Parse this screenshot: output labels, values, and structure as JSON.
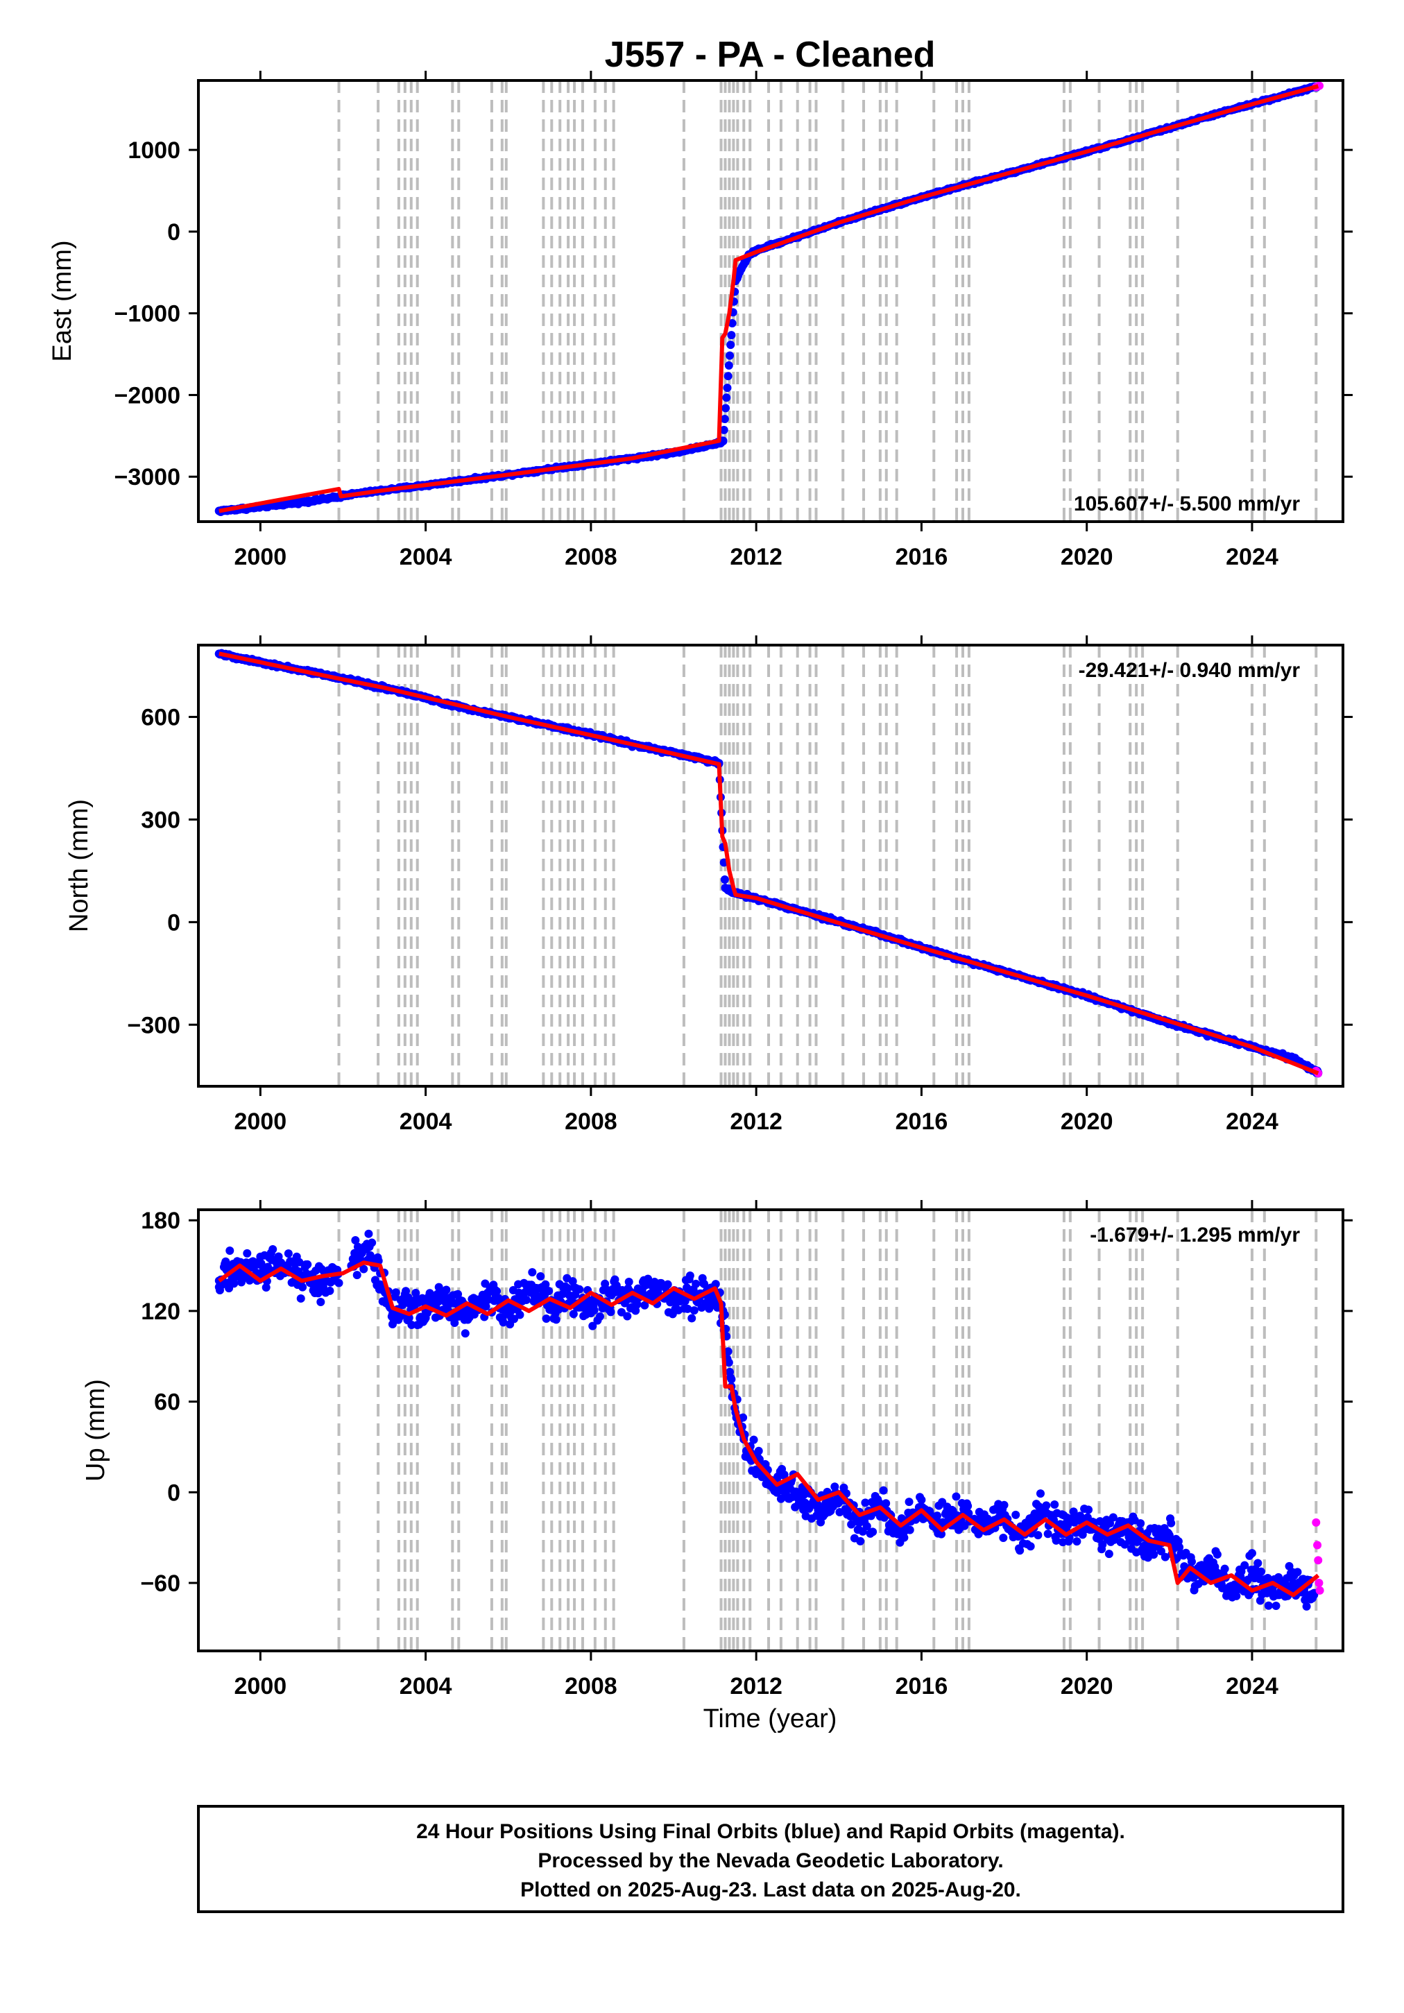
{
  "title": "J557  - PA - Cleaned",
  "xlabel": "Time (year)",
  "xticks": [
    "2000",
    "2004",
    "2008",
    "2012",
    "2016",
    "2020",
    "2024"
  ],
  "colors": {
    "final_orbits": "#0000ff",
    "rapid_orbits": "#ff00ff",
    "model_fit": "#ff0000",
    "event_lines": "#bdbdbd"
  },
  "footer": {
    "line1": "24 Hour Positions Using Final Orbits (blue) and Rapid Orbits (magenta).",
    "line2": "Processed by the Nevada Geodetic Laboratory.",
    "line3": "Plotted on 2025-Aug-23. Last data on 2025-Aug-20."
  },
  "chart_data": [
    {
      "type": "scatter",
      "ylabel": "East (mm)",
      "rate_label": "105.607+/- 5.500 mm/yr",
      "xlim": [
        1998.5,
        2026.2
      ],
      "ylim": [
        -3550,
        1850
      ],
      "yticks": [
        "1000",
        "0",
        "−1000",
        "−2000",
        "−3000"
      ],
      "ytick_values": [
        1000,
        0,
        -1000,
        -2000,
        -3000
      ],
      "series": [
        {
          "name": "Final Orbits",
          "x": [
            1999.0,
            2000.0,
            2001.0,
            2001.9,
            2002.0,
            2003.0,
            2004.0,
            2005.0,
            2006.0,
            2007.0,
            2008.0,
            2009.0,
            2010.0,
            2011.1,
            2011.2,
            2011.5,
            2011.8,
            2012.0,
            2013.0,
            2014.0,
            2015.0,
            2016.0,
            2017.0,
            2018.0,
            2019.0,
            2020.0,
            2021.0,
            2022.0,
            2023.0,
            2024.0,
            2025.0,
            2025.6
          ],
          "y": [
            -3420,
            -3370,
            -3310,
            -3250,
            -3230,
            -3165,
            -3105,
            -3040,
            -2975,
            -2905,
            -2840,
            -2775,
            -2705,
            -2590,
            -2560,
            -600,
            -300,
            -230,
            -60,
            110,
            270,
            420,
            560,
            700,
            840,
            980,
            1120,
            1270,
            1420,
            1560,
            1700,
            1780
          ]
        },
        {
          "name": "Rapid Orbits",
          "x": [
            2025.55,
            2025.6,
            2025.63
          ],
          "y": [
            1770,
            1780,
            1785
          ]
        },
        {
          "name": "Model",
          "x": [
            1999.0,
            2001.9,
            2001.95,
            2003.0,
            2006.0,
            2009.0,
            2011.1,
            2011.18,
            2011.25,
            2011.35,
            2011.45,
            2011.5,
            2012.0,
            2014.0,
            2016.0,
            2018.0,
            2020.0,
            2022.0,
            2024.0,
            2025.6
          ],
          "y": [
            -3420,
            -3150,
            -3240,
            -3165,
            -2975,
            -2775,
            -2560,
            -1300,
            -1250,
            -1000,
            -600,
            -350,
            -250,
            110,
            420,
            700,
            980,
            1270,
            1560,
            1780
          ]
        }
      ]
    },
    {
      "type": "scatter",
      "ylabel": "North (mm)",
      "rate_label": "-29.421+/- 0.940 mm/yr",
      "xlim": [
        1998.5,
        2026.2
      ],
      "ylim": [
        -480,
        810
      ],
      "yticks": [
        "600",
        "300",
        "0",
        "−300"
      ],
      "ytick_values": [
        600,
        300,
        0,
        -300
      ],
      "series": [
        {
          "name": "Final Orbits",
          "x": [
            1999.0,
            2000.0,
            2001.0,
            2001.9,
            2003.0,
            2004.0,
            2005.0,
            2006.0,
            2007.0,
            2008.0,
            2009.0,
            2010.0,
            2011.1,
            2011.25,
            2011.5,
            2012.0,
            2013.0,
            2014.0,
            2015.0,
            2016.0,
            2017.0,
            2018.0,
            2019.0,
            2020.0,
            2021.0,
            2022.0,
            2023.0,
            2024.0,
            2025.0,
            2025.6
          ],
          "y": [
            785,
            760,
            735,
            715,
            685,
            655,
            625,
            600,
            575,
            550,
            520,
            495,
            465,
            100,
            85,
            70,
            35,
            0,
            -35,
            -75,
            -110,
            -145,
            -180,
            -215,
            -255,
            -295,
            -330,
            -365,
            -400,
            -440
          ]
        },
        {
          "name": "Rapid Orbits",
          "x": [
            2025.55,
            2025.6
          ],
          "y": [
            -435,
            -442
          ]
        },
        {
          "name": "Model",
          "x": [
            1999.0,
            2001.9,
            2003.0,
            2006.0,
            2009.0,
            2011.1,
            2011.18,
            2011.25,
            2011.35,
            2011.45,
            2011.5,
            2012.0,
            2016.0,
            2020.0,
            2024.0,
            2025.6
          ],
          "y": [
            785,
            712,
            685,
            600,
            520,
            462,
            250,
            230,
            150,
            100,
            80,
            70,
            -75,
            -215,
            -365,
            -442
          ]
        }
      ]
    },
    {
      "type": "scatter",
      "ylabel": "Up (mm)",
      "rate_label": "-1.679+/- 1.295 mm/yr",
      "xlim": [
        1998.5,
        2026.2
      ],
      "ylim": [
        -105,
        187
      ],
      "yticks": [
        "180",
        "120",
        "60",
        "0",
        "−60"
      ],
      "ytick_values": [
        180,
        120,
        60,
        0,
        -60
      ],
      "series": [
        {
          "name": "Final Orbits",
          "x": [
            1999.0,
            1999.5,
            2000.0,
            2000.5,
            2001.0,
            2001.5,
            2002.2,
            2002.6,
            2002.9,
            2003.2,
            2003.6,
            2004.0,
            2004.5,
            2005.0,
            2005.5,
            2006.0,
            2006.5,
            2007.0,
            2007.5,
            2008.0,
            2008.5,
            2009.0,
            2009.5,
            2010.0,
            2010.5,
            2011.0,
            2011.2,
            2011.4,
            2011.7,
            2012.0,
            2012.5,
            2013.0,
            2013.5,
            2014.0,
            2014.5,
            2015.0,
            2015.5,
            2016.0,
            2016.5,
            2017.0,
            2017.5,
            2018.0,
            2018.5,
            2019.0,
            2019.5,
            2020.0,
            2020.5,
            2021.0,
            2021.5,
            2022.0,
            2022.5,
            2023.0,
            2023.5,
            2024.0,
            2024.5,
            2025.0,
            2025.5
          ],
          "y": [
            140,
            150,
            145,
            152,
            142,
            140,
            150,
            162,
            145,
            118,
            125,
            120,
            128,
            117,
            132,
            122,
            133,
            125,
            130,
            124,
            133,
            128,
            136,
            127,
            132,
            133,
            120,
            70,
            35,
            15,
            8,
            0,
            -12,
            -5,
            -20,
            -8,
            -25,
            -12,
            -20,
            -15,
            -22,
            -18,
            -28,
            -14,
            -25,
            -20,
            -28,
            -22,
            -35,
            -32,
            -55,
            -50,
            -62,
            -55,
            -65,
            -60,
            -68
          ]
        },
        {
          "name": "Rapid Orbits",
          "x": [
            2025.55,
            2025.58,
            2025.6,
            2025.62,
            2025.64
          ],
          "y": [
            -20,
            -35,
            -45,
            -60,
            -65
          ]
        },
        {
          "name": "Model",
          "x": [
            1999.0,
            1999.5,
            2000.0,
            2000.5,
            2001.0,
            2001.5,
            2002.0,
            2002.5,
            2002.9,
            2003.2,
            2003.6,
            2004.0,
            2004.5,
            2005.0,
            2005.5,
            2006.0,
            2006.5,
            2007.0,
            2007.5,
            2008.0,
            2008.5,
            2009.0,
            2009.5,
            2010.0,
            2010.5,
            2011.0,
            2011.15,
            2011.25,
            2011.4,
            2011.5,
            2011.7,
            2012.0,
            2012.5,
            2013.0,
            2013.5,
            2014.0,
            2014.5,
            2015.0,
            2015.5,
            2016.0,
            2016.5,
            2017.0,
            2017.5,
            2018.0,
            2018.5,
            2019.0,
            2019.5,
            2020.0,
            2020.5,
            2021.0,
            2021.5,
            2022.0,
            2022.2,
            2022.5,
            2023.0,
            2023.5,
            2024.0,
            2024.5,
            2025.0,
            2025.6
          ],
          "y": [
            140,
            150,
            140,
            148,
            140,
            143,
            145,
            152,
            150,
            122,
            118,
            123,
            117,
            125,
            118,
            127,
            120,
            128,
            122,
            132,
            124,
            132,
            125,
            135,
            128,
            135,
            125,
            70,
            70,
            55,
            35,
            20,
            5,
            12,
            -5,
            0,
            -15,
            -10,
            -22,
            -12,
            -25,
            -15,
            -25,
            -18,
            -28,
            -18,
            -28,
            -20,
            -28,
            -22,
            -32,
            -35,
            -60,
            -50,
            -60,
            -55,
            -65,
            -60,
            -68,
            -55
          ]
        }
      ],
      "event_lines_x": [
        2001.9,
        2002.85,
        2003.35,
        2003.5,
        2003.65,
        2003.8,
        2004.65,
        2004.8,
        2005.6,
        2005.85,
        2005.95,
        2006.85,
        2007.05,
        2007.25,
        2007.45,
        2007.6,
        2007.8,
        2008.1,
        2008.35,
        2008.55,
        2010.25,
        2011.15,
        2011.25,
        2011.35,
        2011.45,
        2011.55,
        2011.7,
        2011.85,
        2012.3,
        2012.6,
        2013.0,
        2013.3,
        2013.45,
        2014.1,
        2014.6,
        2015.0,
        2015.15,
        2015.4,
        2016.3,
        2016.85,
        2017.0,
        2017.15,
        2019.45,
        2019.6,
        2020.3,
        2021.05,
        2021.2,
        2021.35,
        2022.2,
        2024.0,
        2024.3,
        2025.55
      ]
    }
  ]
}
